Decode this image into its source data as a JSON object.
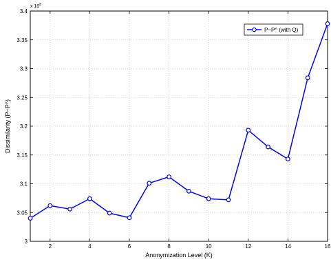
{
  "chart_data": {
    "type": "line",
    "title": "",
    "xlabel": "Anonymization Level (K)",
    "ylabel": "Dissimilarity  (P~P^)",
    "y_multiplier_label": "x 10",
    "y_multiplier_exponent": "8",
    "xlim": [
      1,
      16
    ],
    "ylim": [
      3.0,
      3.4
    ],
    "x_ticks": [
      2,
      4,
      6,
      8,
      10,
      12,
      14,
      16
    ],
    "x_tick_labels": [
      "2",
      "4",
      "6",
      "8",
      "10",
      "12",
      "14",
      "16"
    ],
    "y_ticks": [
      3.0,
      3.05,
      3.1,
      3.15,
      3.2,
      3.25,
      3.3,
      3.35,
      3.4
    ],
    "y_tick_labels": [
      "3",
      "3.05",
      "3.1",
      "3.15",
      "3.2",
      "3.25",
      "3.3",
      "3.35",
      "3.4"
    ],
    "grid": true,
    "legend_position": "top-right",
    "colors": {
      "series": "#0000ff",
      "grid": "#b0b0b0",
      "axis": "#000000"
    },
    "series": [
      {
        "name": "P~P^ (with Q)",
        "marker": "circle",
        "x": [
          1,
          2,
          3,
          4,
          5,
          6,
          7,
          8,
          9,
          10,
          11,
          12,
          13,
          14,
          15,
          16
        ],
        "values": [
          3.04,
          3.062,
          3.056,
          3.074,
          3.049,
          3.041,
          3.101,
          3.112,
          3.087,
          3.074,
          3.072,
          3.193,
          3.164,
          3.143,
          3.284,
          3.378
        ]
      }
    ]
  }
}
